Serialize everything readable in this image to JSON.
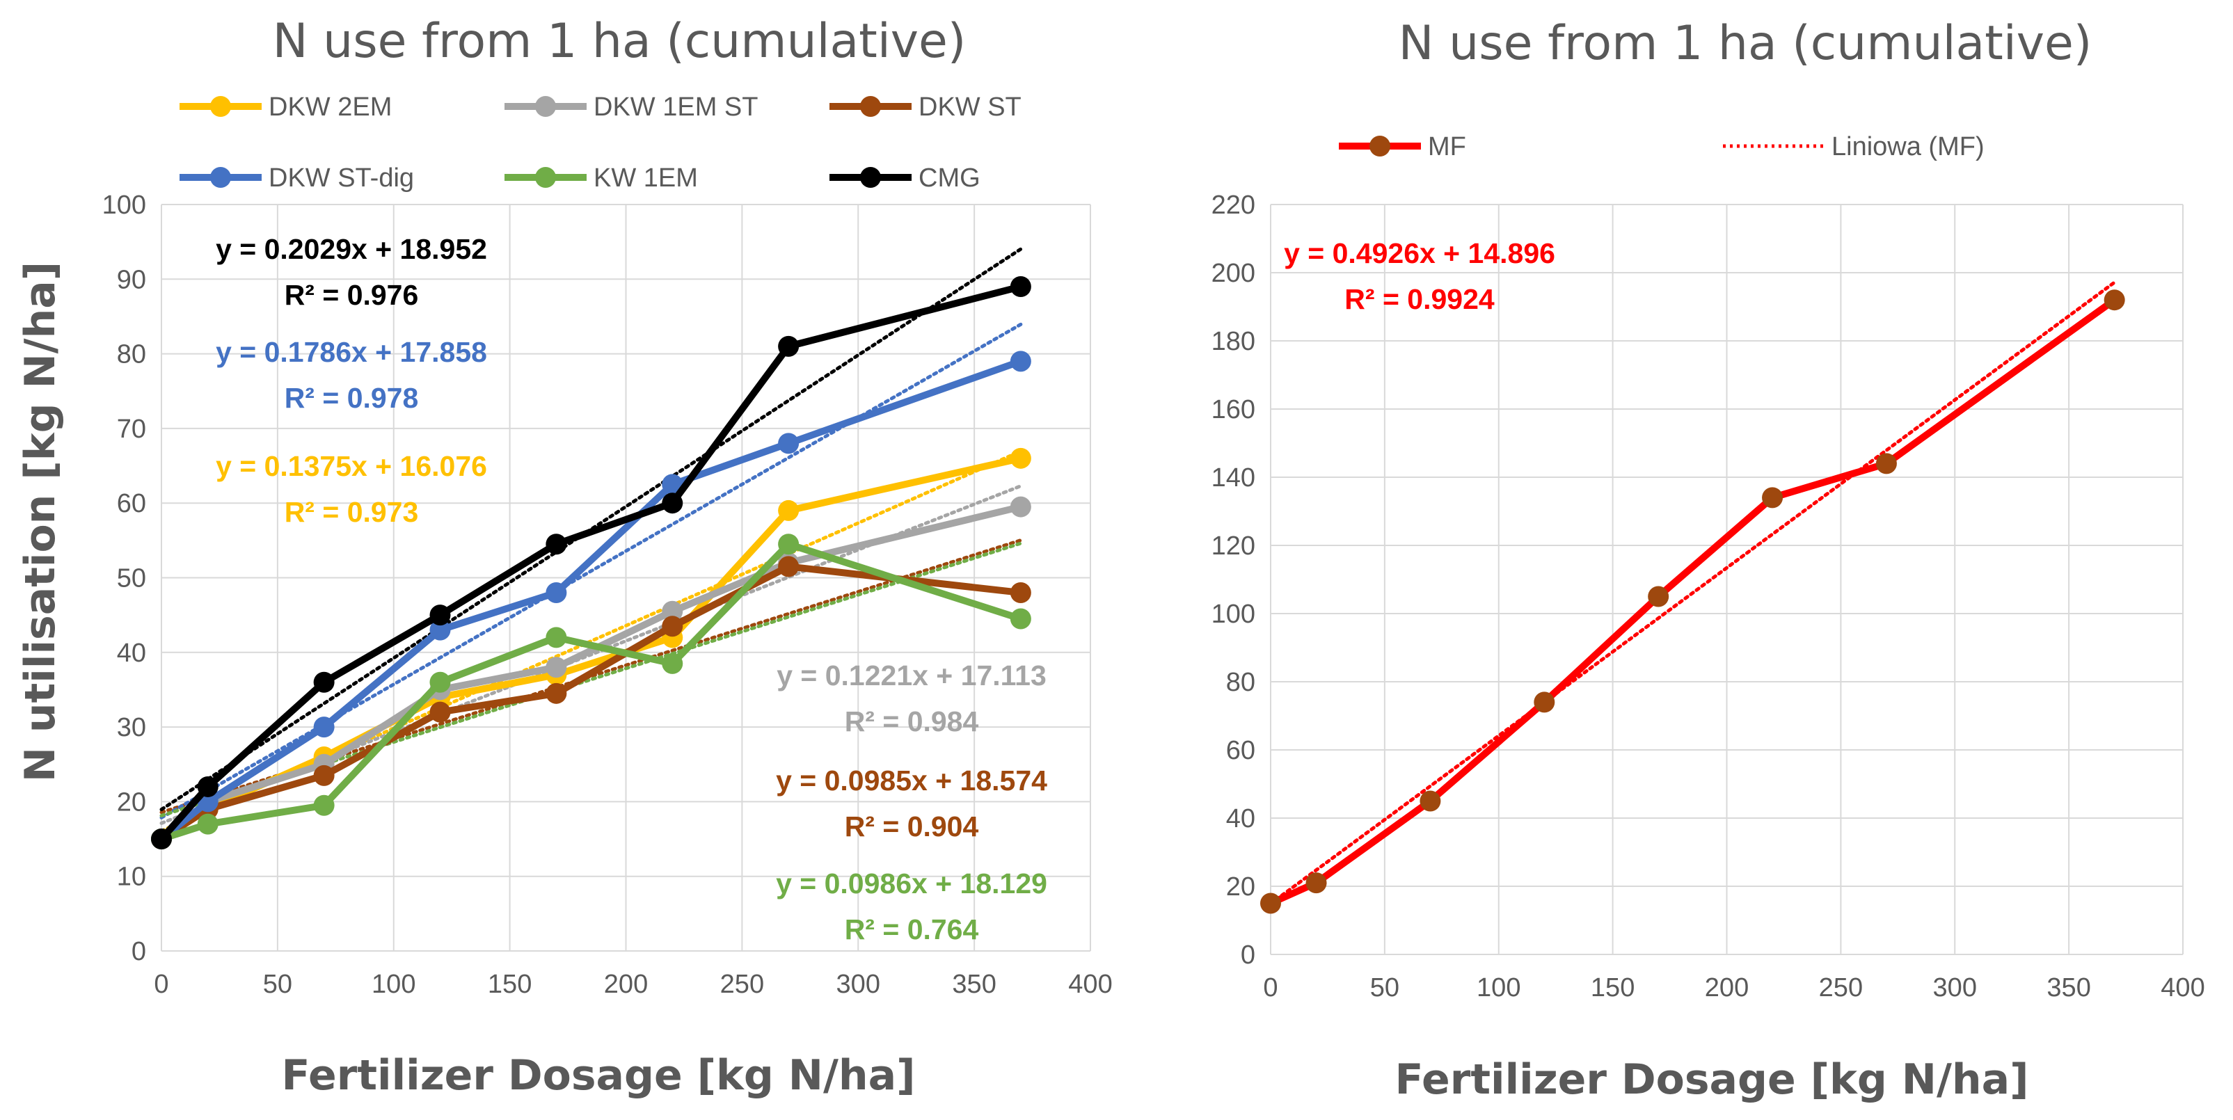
{
  "chart_data": [
    {
      "type": "line",
      "title": "N use from 1 ha (cumulative)",
      "xlabel": "Fertilizer Dosage [kg N/ha]",
      "ylabel": "N utilisation [kg N/ha]",
      "xlim": [
        0,
        400
      ],
      "ylim": [
        0,
        100
      ],
      "x_ticks": [
        "0",
        "50",
        "100",
        "150",
        "200",
        "250",
        "300",
        "350",
        "400"
      ],
      "y_ticks": [
        "0",
        "10",
        "20",
        "30",
        "40",
        "50",
        "60",
        "70",
        "80",
        "90",
        "100"
      ],
      "grid": true,
      "legend_position": "top",
      "x": [
        0,
        20,
        70,
        120,
        170,
        220,
        270,
        370
      ],
      "series": [
        {
          "name": "DKW 2EM",
          "color": "#FFC000",
          "values": [
            15,
            19,
            26,
            34,
            37,
            42,
            59,
            66
          ],
          "trend": {
            "slope": 0.1375,
            "intercept": 16.076
          },
          "equation": "y = 0.1375x + 16.076",
          "r2": "R² = 0.973"
        },
        {
          "name": "DKW 1EM ST",
          "color": "#A5A5A5",
          "values": [
            15,
            20,
            25,
            35,
            38,
            45.5,
            52,
            59.5
          ],
          "trend": {
            "slope": 0.1221,
            "intercept": 17.113
          },
          "equation": "y = 0.1221x + 17.113",
          "r2": "R² = 0.984"
        },
        {
          "name": "DKW ST",
          "color": "#9E480E",
          "values": [
            15,
            19,
            23.5,
            32,
            34.5,
            43.5,
            51.5,
            48
          ],
          "trend": {
            "slope": 0.0985,
            "intercept": 18.574
          },
          "equation": "y = 0.0985x + 18.574",
          "r2": "R² = 0.904"
        },
        {
          "name": "DKW ST-dig",
          "color": "#4472C4",
          "values": [
            15,
            20,
            30,
            43,
            48,
            62.5,
            68,
            79
          ],
          "trend": {
            "slope": 0.1786,
            "intercept": 17.858
          },
          "equation": "y = 0.1786x + 17.858",
          "r2": "R² = 0.978"
        },
        {
          "name": "KW 1EM",
          "color": "#70AD47",
          "values": [
            15,
            17,
            19.5,
            36,
            42,
            38.5,
            54.5,
            44.5
          ],
          "trend": {
            "slope": 0.0986,
            "intercept": 18.129
          },
          "equation": "y = 0.0986x + 18.129",
          "r2": "R² = 0.764"
        },
        {
          "name": "CMG",
          "color": "#000000",
          "values": [
            15,
            22,
            36,
            45,
            54.5,
            60,
            81,
            89
          ],
          "trend": {
            "slope": 0.2029,
            "intercept": 18.952
          },
          "equation": "y = 0.2029x + 18.952",
          "r2": "R² = 0.976"
        }
      ]
    },
    {
      "type": "line",
      "title": "N use from 1 ha (cumulative)",
      "xlabel": "Fertilizer Dosage [kg N/ha]",
      "ylabel": "",
      "xlim": [
        0,
        400
      ],
      "ylim": [
        0,
        220
      ],
      "x_ticks": [
        "0",
        "50",
        "100",
        "150",
        "200",
        "250",
        "300",
        "350",
        "400"
      ],
      "y_ticks": [
        "0",
        "20",
        "40",
        "60",
        "80",
        "100",
        "120",
        "140",
        "160",
        "180",
        "200",
        "220"
      ],
      "grid": true,
      "legend_position": "top",
      "x": [
        0,
        20,
        70,
        120,
        170,
        220,
        270,
        370
      ],
      "series": [
        {
          "name": "MF",
          "color": "#FF0000",
          "marker_color": "#9E480E",
          "values": [
            15,
            21,
            45,
            74,
            105,
            134,
            144,
            192
          ],
          "trend": {
            "slope": 0.4926,
            "intercept": 14.896
          },
          "equation": "y = 0.4926x + 14.896",
          "r2": "R² = 0.9924"
        }
      ],
      "trendline_legend": "Liniowa (MF)"
    }
  ]
}
